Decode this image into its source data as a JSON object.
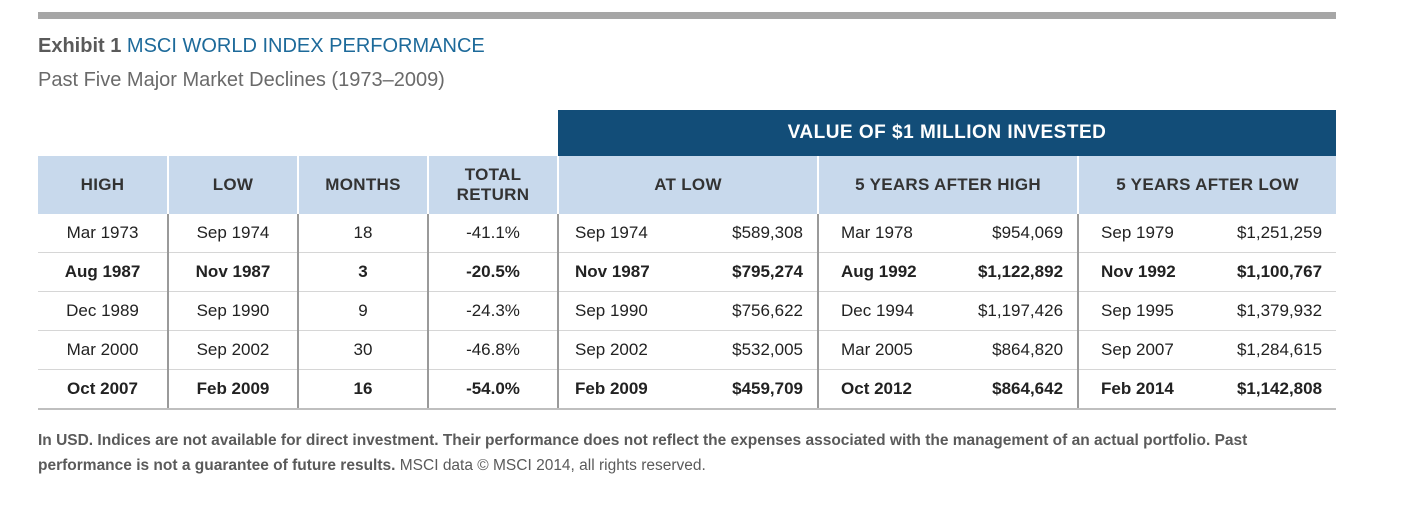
{
  "header": {
    "exhibit": "Exhibit 1",
    "title": "MSCI WORLD INDEX PERFORMANCE",
    "subtitle": "Past Five Major Market Declines (1973–2009)"
  },
  "group_header": "VALUE OF $1 MILLION INVESTED",
  "columns": {
    "high": "HIGH",
    "low": "LOW",
    "months": "MONTHS",
    "total_return_1": "TOTAL",
    "total_return_2": "RETURN",
    "at_low": "AT LOW",
    "five_after_high": "5 YEARS AFTER HIGH",
    "five_after_low": "5 YEARS AFTER LOW"
  },
  "rows": [
    {
      "high": "Mar 1973",
      "low": "Sep 1974",
      "months": "18",
      "total_return": "-41.1%",
      "at_low_date": "Sep 1974",
      "at_low_value": "$589,308",
      "after_high_date": "Mar 1978",
      "after_high_value": "$954,069",
      "after_low_date": "Sep 1979",
      "after_low_value": "$1,251,259"
    },
    {
      "high": "Aug 1987",
      "low": "Nov 1987",
      "months": "3",
      "total_return": "-20.5%",
      "at_low_date": "Nov 1987",
      "at_low_value": "$795,274",
      "after_high_date": "Aug 1992",
      "after_high_value": "$1,122,892",
      "after_low_date": "Nov 1992",
      "after_low_value": "$1,100,767"
    },
    {
      "high": "Dec 1989",
      "low": "Sep 1990",
      "months": "9",
      "total_return": "-24.3%",
      "at_low_date": "Sep 1990",
      "at_low_value": "$756,622",
      "after_high_date": "Dec 1994",
      "after_high_value": "$1,197,426",
      "after_low_date": "Sep 1995",
      "after_low_value": "$1,379,932"
    },
    {
      "high": "Mar 2000",
      "low": "Sep 2002",
      "months": "30",
      "total_return": "-46.8%",
      "at_low_date": "Sep 2002",
      "at_low_value": "$532,005",
      "after_high_date": "Mar 2005",
      "after_high_value": "$864,820",
      "after_low_date": "Sep 2007",
      "after_low_value": "$1,284,615"
    },
    {
      "high": "Oct 2007",
      "low": "Feb 2009",
      "months": "16",
      "total_return": "-54.0%",
      "at_low_date": "Feb 2009",
      "at_low_value": "$459,709",
      "after_high_date": "Oct 2012",
      "after_high_value": "$864,642",
      "after_low_date": "Feb 2014",
      "after_low_value": "$1,142,808"
    }
  ],
  "footnote": {
    "bold_text": "In USD. Indices are not available for direct investment. Their performance does not reflect the expenses associated with the management of an actual portfolio. Past performance is not a guarantee of future results.",
    "normal_text": " MSCI data © MSCI 2014, all rights reserved."
  }
}
